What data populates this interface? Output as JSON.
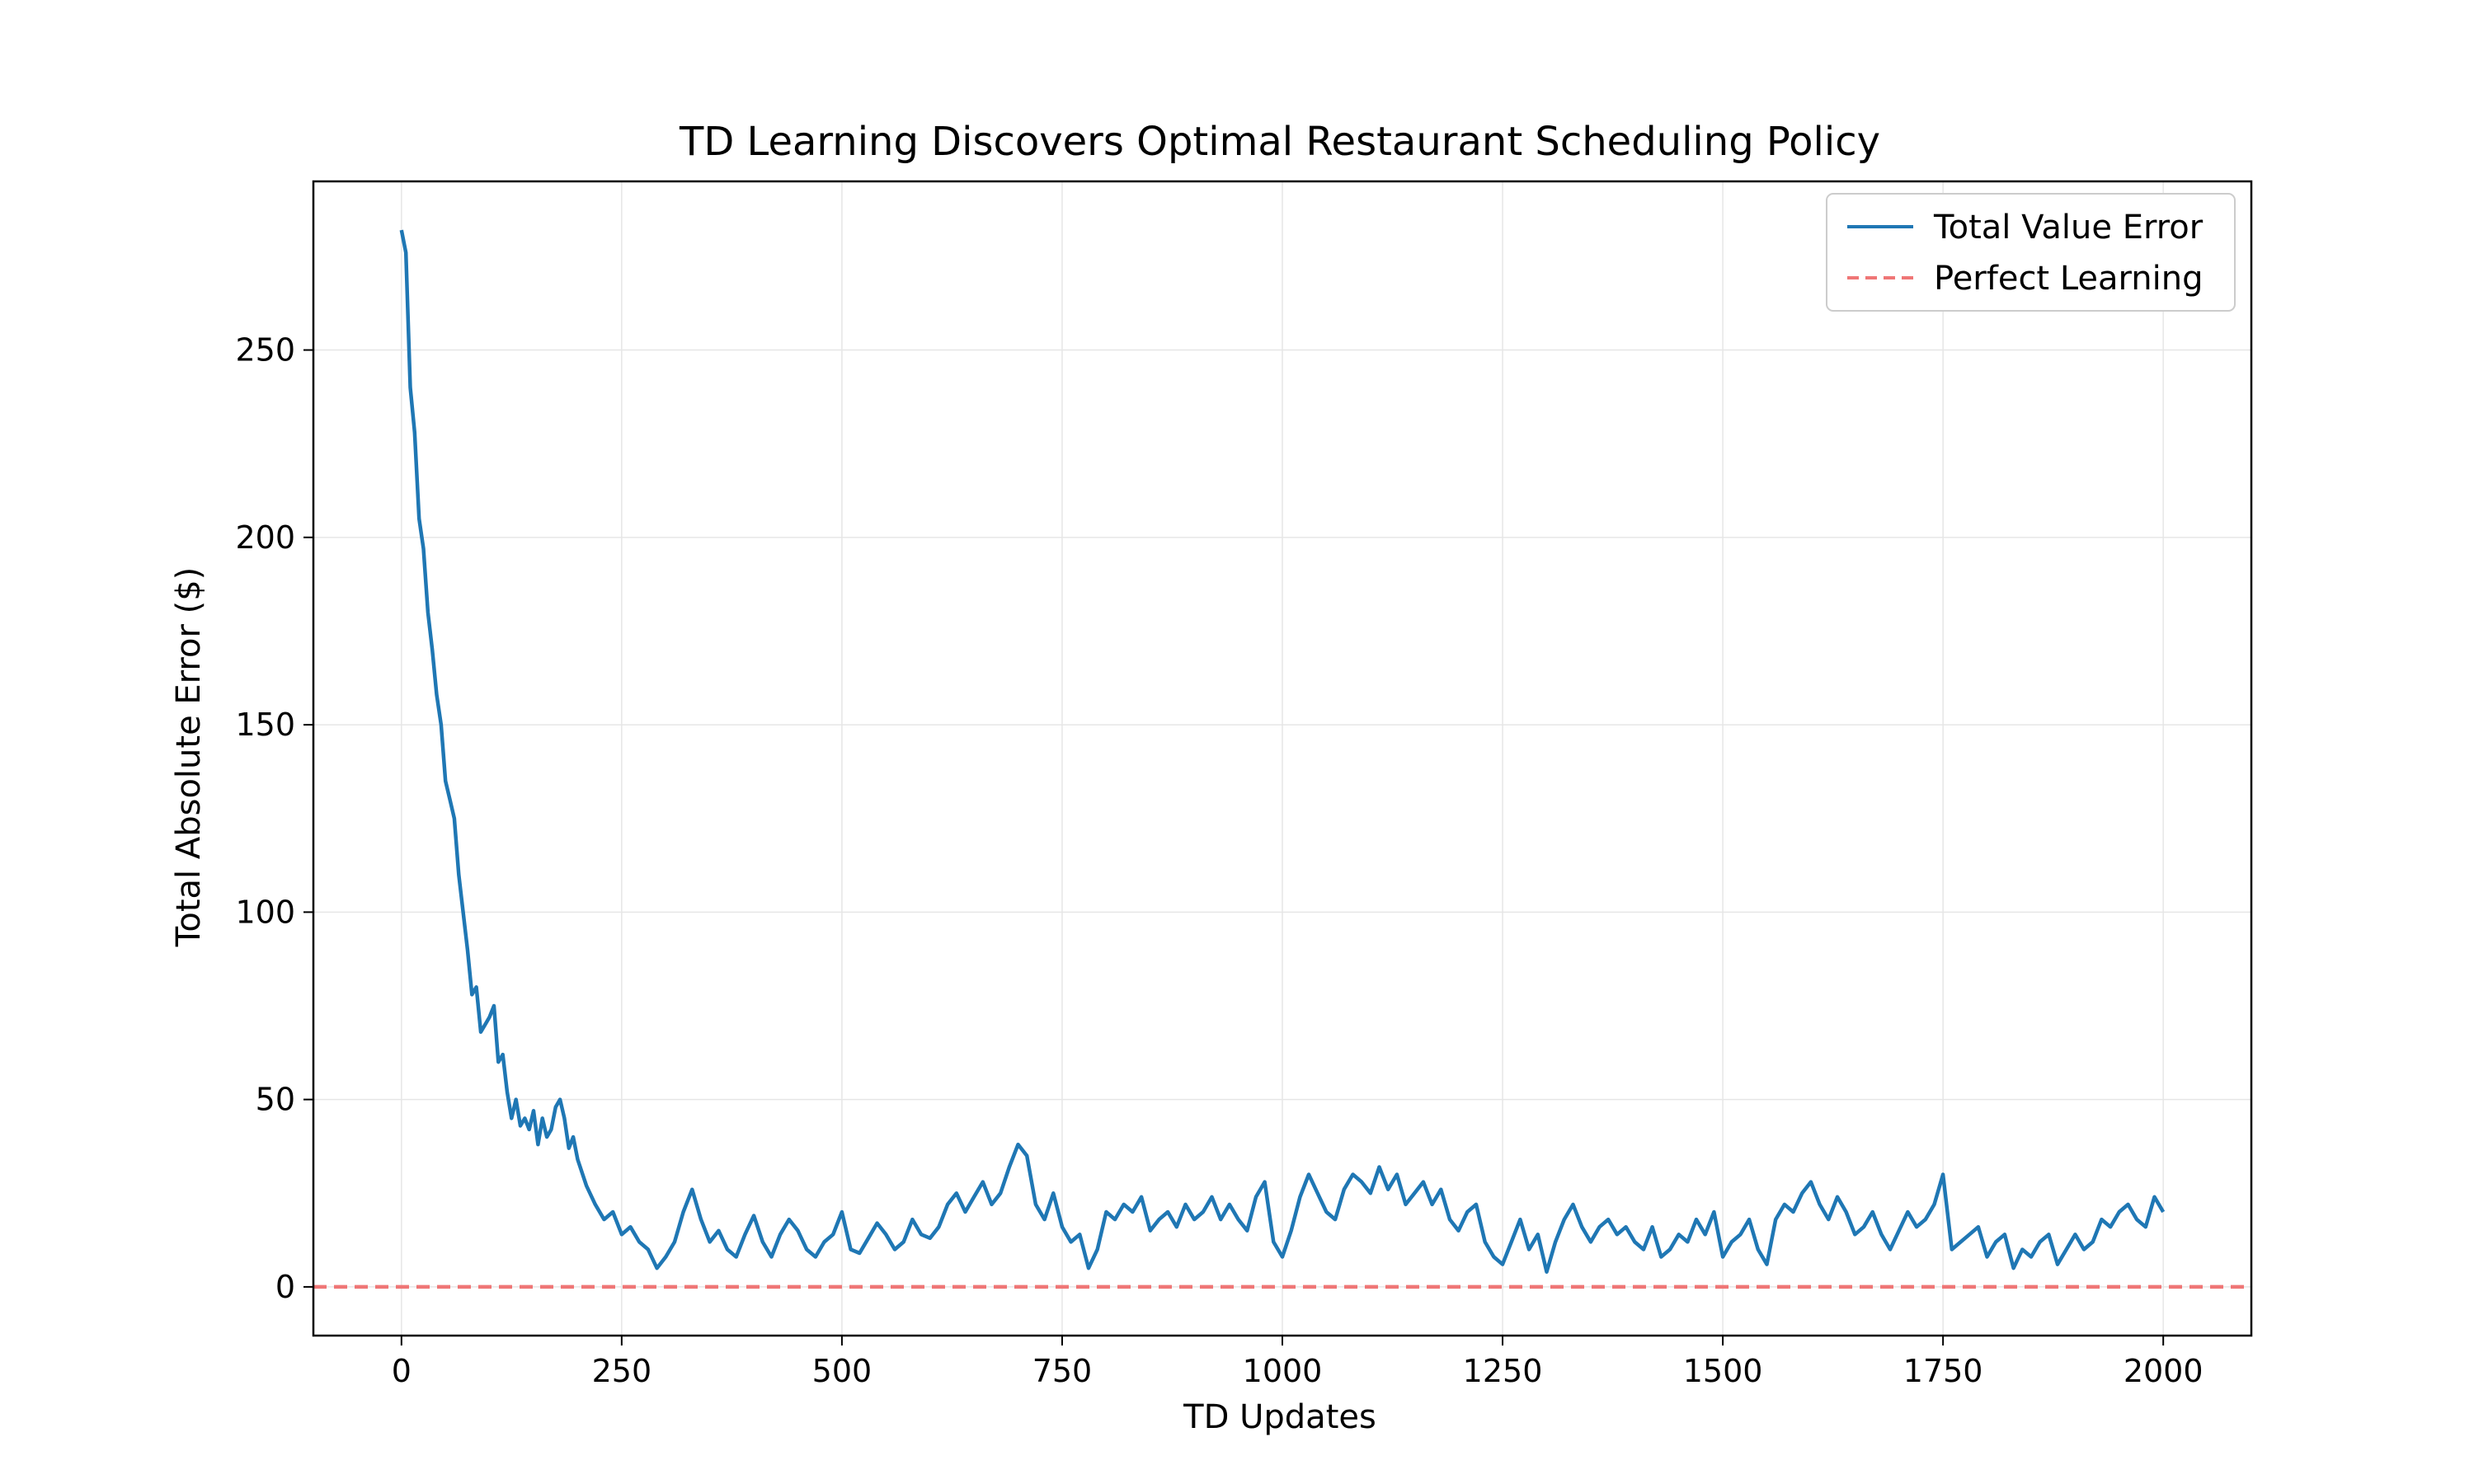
{
  "chart_data": {
    "type": "line",
    "title": "TD Learning Discovers Optimal Restaurant Scheduling Policy",
    "xlabel": "TD Updates",
    "ylabel": "Total Absolute Error ($)",
    "xlim": [
      -100,
      2100
    ],
    "ylim": [
      -13,
      295
    ],
    "xticks": [
      0,
      250,
      500,
      750,
      1000,
      1250,
      1500,
      1750,
      2000
    ],
    "yticks": [
      0,
      50,
      100,
      150,
      200,
      250
    ],
    "grid": true,
    "legend_position": "top-right",
    "series": [
      {
        "name": "Total Value Error",
        "color": "#1f77b4",
        "style": "solid",
        "x": [
          0,
          5,
          10,
          15,
          20,
          25,
          30,
          35,
          40,
          45,
          50,
          55,
          60,
          65,
          70,
          75,
          80,
          85,
          90,
          95,
          100,
          105,
          110,
          115,
          120,
          125,
          130,
          135,
          140,
          145,
          150,
          155,
          160,
          165,
          170,
          175,
          180,
          185,
          190,
          195,
          200,
          210,
          220,
          230,
          240,
          250,
          260,
          270,
          280,
          290,
          300,
          310,
          320,
          330,
          340,
          350,
          360,
          370,
          380,
          390,
          400,
          410,
          420,
          430,
          440,
          450,
          460,
          470,
          480,
          490,
          500,
          510,
          520,
          530,
          540,
          550,
          560,
          570,
          580,
          590,
          600,
          610,
          620,
          630,
          640,
          650,
          660,
          670,
          680,
          690,
          700,
          710,
          720,
          730,
          740,
          750,
          760,
          770,
          780,
          790,
          800,
          810,
          820,
          830,
          840,
          850,
          860,
          870,
          880,
          890,
          900,
          910,
          920,
          930,
          940,
          950,
          960,
          970,
          980,
          990,
          1000,
          1010,
          1020,
          1030,
          1040,
          1050,
          1060,
          1070,
          1080,
          1090,
          1100,
          1110,
          1120,
          1130,
          1140,
          1150,
          1160,
          1170,
          1180,
          1190,
          1200,
          1210,
          1220,
          1230,
          1240,
          1250,
          1260,
          1270,
          1280,
          1290,
          1300,
          1310,
          1320,
          1330,
          1340,
          1350,
          1360,
          1370,
          1380,
          1390,
          1400,
          1410,
          1420,
          1430,
          1440,
          1450,
          1460,
          1470,
          1480,
          1490,
          1500,
          1510,
          1520,
          1530,
          1540,
          1550,
          1560,
          1570,
          1580,
          1590,
          1600,
          1610,
          1620,
          1630,
          1640,
          1650,
          1660,
          1670,
          1680,
          1690,
          1700,
          1710,
          1720,
          1730,
          1740,
          1750,
          1760,
          1770,
          1780,
          1790,
          1800,
          1810,
          1820,
          1830,
          1840,
          1850,
          1860,
          1870,
          1880,
          1890,
          1900,
          1910,
          1920,
          1930,
          1940,
          1950,
          1960,
          1970,
          1980,
          1990,
          2000
        ],
        "y": [
          282,
          276,
          240,
          228,
          205,
          197,
          180,
          170,
          158,
          150,
          135,
          130,
          125,
          110,
          100,
          90,
          78,
          80,
          68,
          70,
          72,
          75,
          60,
          62,
          52,
          45,
          50,
          43,
          45,
          42,
          47,
          38,
          45,
          40,
          42,
          48,
          50,
          45,
          37,
          40,
          34,
          27,
          22,
          18,
          20,
          14,
          16,
          12,
          10,
          5,
          8,
          12,
          20,
          26,
          18,
          12,
          15,
          10,
          8,
          14,
          19,
          12,
          8,
          14,
          18,
          15,
          10,
          8,
          12,
          14,
          20,
          10,
          9,
          13,
          17,
          14,
          10,
          12,
          18,
          14,
          13,
          16,
          22,
          25,
          20,
          24,
          28,
          22,
          25,
          32,
          38,
          35,
          22,
          18,
          25,
          16,
          12,
          14,
          5,
          10,
          20,
          18,
          22,
          20,
          24,
          15,
          18,
          20,
          16,
          22,
          18,
          20,
          24,
          18,
          22,
          18,
          15,
          24,
          28,
          12,
          8,
          15,
          24,
          30,
          25,
          20,
          18,
          26,
          30,
          28,
          25,
          32,
          26,
          30,
          22,
          25,
          28,
          22,
          26,
          18,
          15,
          20,
          22,
          12,
          8,
          6,
          12,
          18,
          10,
          14,
          4,
          12,
          18,
          22,
          16,
          12,
          16,
          18,
          14,
          16,
          12,
          10,
          16,
          8,
          10,
          14,
          12,
          18,
          14,
          20,
          8,
          12,
          14,
          18,
          10,
          6,
          18,
          22,
          20,
          25,
          28,
          22,
          18,
          24,
          20,
          14,
          16,
          20,
          14,
          10,
          15,
          20,
          16,
          18,
          22,
          30,
          10,
          12,
          14,
          16,
          8,
          12,
          14,
          5,
          10,
          8,
          12,
          14,
          6,
          10,
          14,
          10,
          12,
          18,
          16,
          20,
          22,
          18,
          16,
          24,
          20
        ]
      },
      {
        "name": "Perfect Learning",
        "color": "#ef7676",
        "style": "dashed",
        "x": [
          -100,
          2100
        ],
        "y": [
          0,
          0
        ]
      }
    ]
  }
}
